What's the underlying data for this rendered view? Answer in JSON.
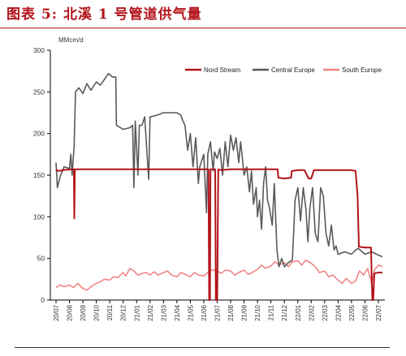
{
  "figure_title": "图表 5:  北溪 1 号管道供气量",
  "chart_data": {
    "type": "line",
    "ylabel": "MMcm/d",
    "ylim": [
      0,
      300
    ],
    "yticks": [
      "0",
      "50",
      "100",
      "150",
      "200",
      "250",
      "300"
    ],
    "xticks": [
      "20/07",
      "20/08",
      "20/09",
      "20/10",
      "20/11",
      "20/12",
      "21/01",
      "21/02",
      "21/03",
      "21/04",
      "21/05",
      "21/06",
      "21/07",
      "21/08",
      "21/09",
      "21/10",
      "21/11",
      "21/12",
      "22/01",
      "22/02",
      "22/03",
      "22/04",
      "22/05",
      "22/06",
      "22/07"
    ],
    "legend_position": "top-right",
    "series": [
      {
        "name": "Nord Stream",
        "color": "#b2131a",
        "points": [
          [
            0.0,
            157
          ],
          [
            0.15,
            155
          ],
          [
            0.5,
            156
          ],
          [
            1.2,
            157
          ],
          [
            1.33,
            157
          ],
          [
            1.36,
            98
          ],
          [
            1.4,
            157
          ],
          [
            2.0,
            157
          ],
          [
            3.0,
            157
          ],
          [
            4.0,
            157
          ],
          [
            5.0,
            157
          ],
          [
            6.0,
            157
          ],
          [
            7.0,
            157
          ],
          [
            8.0,
            157
          ],
          [
            9.0,
            157
          ],
          [
            10.0,
            157
          ],
          [
            11.0,
            157
          ],
          [
            11.35,
            157
          ],
          [
            11.4,
            0
          ],
          [
            11.46,
            0
          ],
          [
            11.5,
            157
          ],
          [
            11.85,
            157
          ],
          [
            11.9,
            0
          ],
          [
            12.0,
            0
          ],
          [
            12.08,
            157
          ],
          [
            12.3,
            156
          ],
          [
            13.0,
            157
          ],
          [
            14.0,
            157
          ],
          [
            15.0,
            157
          ],
          [
            16.0,
            157
          ],
          [
            16.5,
            157
          ],
          [
            16.55,
            147
          ],
          [
            17.0,
            146
          ],
          [
            17.5,
            147
          ],
          [
            17.55,
            155
          ],
          [
            18.0,
            156
          ],
          [
            18.5,
            156
          ],
          [
            18.8,
            146
          ],
          [
            19.0,
            146
          ],
          [
            19.2,
            156
          ],
          [
            20.0,
            156
          ],
          [
            21.0,
            156
          ],
          [
            22.0,
            156
          ],
          [
            22.3,
            155
          ],
          [
            22.45,
            125
          ],
          [
            22.55,
            64
          ],
          [
            23.0,
            63
          ],
          [
            23.45,
            63
          ],
          [
            23.5,
            30
          ],
          [
            23.55,
            0
          ],
          [
            23.62,
            0
          ],
          [
            23.7,
            32
          ],
          [
            24.0,
            33
          ],
          [
            24.3,
            33
          ]
        ]
      },
      {
        "name": "Central Europe",
        "color": "#595959",
        "points": [
          [
            0.0,
            165
          ],
          [
            0.1,
            135
          ],
          [
            0.3,
            148
          ],
          [
            0.6,
            160
          ],
          [
            1.0,
            158
          ],
          [
            1.1,
            175
          ],
          [
            1.2,
            150
          ],
          [
            1.35,
            185
          ],
          [
            1.45,
            250
          ],
          [
            1.7,
            255
          ],
          [
            2.0,
            248
          ],
          [
            2.3,
            260
          ],
          [
            2.6,
            252
          ],
          [
            3.0,
            262
          ],
          [
            3.3,
            258
          ],
          [
            3.6,
            265
          ],
          [
            3.9,
            272
          ],
          [
            4.2,
            268
          ],
          [
            4.45,
            268
          ],
          [
            4.5,
            210
          ],
          [
            5.0,
            205
          ],
          [
            5.5,
            207
          ],
          [
            5.7,
            210
          ],
          [
            5.8,
            135
          ],
          [
            5.9,
            215
          ],
          [
            6.1,
            150
          ],
          [
            6.2,
            210
          ],
          [
            6.4,
            210
          ],
          [
            6.6,
            220
          ],
          [
            6.9,
            145
          ],
          [
            7.0,
            220
          ],
          [
            7.5,
            222
          ],
          [
            8.0,
            225
          ],
          [
            8.5,
            225
          ],
          [
            9.0,
            225
          ],
          [
            9.3,
            222
          ],
          [
            9.45,
            215
          ],
          [
            9.6,
            210
          ],
          [
            9.8,
            180
          ],
          [
            10.0,
            200
          ],
          [
            10.2,
            160
          ],
          [
            10.4,
            195
          ],
          [
            10.6,
            140
          ],
          [
            10.7,
            160
          ],
          [
            11.0,
            175
          ],
          [
            11.2,
            105
          ],
          [
            11.3,
            175
          ],
          [
            11.5,
            190
          ],
          [
            11.7,
            155
          ],
          [
            11.8,
            178
          ],
          [
            12.0,
            170
          ],
          [
            12.2,
            182
          ],
          [
            12.4,
            150
          ],
          [
            12.6,
            190
          ],
          [
            12.8,
            160
          ],
          [
            13.0,
            198
          ],
          [
            13.2,
            180
          ],
          [
            13.4,
            195
          ],
          [
            13.6,
            165
          ],
          [
            13.75,
            190
          ],
          [
            14.0,
            150
          ],
          [
            14.2,
            160
          ],
          [
            14.4,
            130
          ],
          [
            14.55,
            155
          ],
          [
            14.7,
            115
          ],
          [
            14.9,
            135
          ],
          [
            15.0,
            100
          ],
          [
            15.15,
            120
          ],
          [
            15.3,
            85
          ],
          [
            15.45,
            140
          ],
          [
            15.6,
            160
          ],
          [
            15.75,
            120
          ],
          [
            15.9,
            110
          ],
          [
            16.1,
            90
          ],
          [
            16.25,
            140
          ],
          [
            16.45,
            60
          ],
          [
            16.6,
            40
          ],
          [
            16.8,
            50
          ],
          [
            17.0,
            40
          ],
          [
            17.3,
            45
          ],
          [
            17.6,
            48
          ],
          [
            17.8,
            120
          ],
          [
            18.0,
            135
          ],
          [
            18.2,
            95
          ],
          [
            18.4,
            135
          ],
          [
            18.6,
            110
          ],
          [
            18.75,
            70
          ],
          [
            18.9,
            110
          ],
          [
            19.1,
            135
          ],
          [
            19.3,
            80
          ],
          [
            19.5,
            70
          ],
          [
            19.7,
            135
          ],
          [
            19.9,
            125
          ],
          [
            20.1,
            80
          ],
          [
            20.3,
            65
          ],
          [
            20.5,
            90
          ],
          [
            20.7,
            60
          ],
          [
            20.85,
            65
          ],
          [
            21.0,
            55
          ],
          [
            21.5,
            58
          ],
          [
            22.0,
            55
          ],
          [
            22.3,
            60
          ],
          [
            22.5,
            62
          ],
          [
            23.0,
            55
          ],
          [
            23.5,
            58
          ],
          [
            24.0,
            54
          ],
          [
            24.3,
            52
          ]
        ]
      },
      {
        "name": "South Europe",
        "color": "#f08585",
        "points": [
          [
            0.0,
            15
          ],
          [
            0.3,
            18
          ],
          [
            0.6,
            16
          ],
          [
            1.0,
            18
          ],
          [
            1.3,
            15
          ],
          [
            1.6,
            20
          ],
          [
            2.0,
            14
          ],
          [
            2.3,
            12
          ],
          [
            2.6,
            16
          ],
          [
            3.0,
            20
          ],
          [
            3.3,
            22
          ],
          [
            3.6,
            25
          ],
          [
            4.0,
            24
          ],
          [
            4.3,
            28
          ],
          [
            4.6,
            27
          ],
          [
            5.0,
            33
          ],
          [
            5.2,
            29
          ],
          [
            5.5,
            38
          ],
          [
            5.8,
            35
          ],
          [
            6.1,
            30
          ],
          [
            6.4,
            32
          ],
          [
            6.7,
            33
          ],
          [
            7.0,
            30
          ],
          [
            7.3,
            34
          ],
          [
            7.6,
            30
          ],
          [
            8.0,
            33
          ],
          [
            8.3,
            35
          ],
          [
            8.6,
            30
          ],
          [
            9.0,
            28
          ],
          [
            9.3,
            33
          ],
          [
            9.6,
            31
          ],
          [
            10.0,
            28
          ],
          [
            10.3,
            33
          ],
          [
            10.6,
            30
          ],
          [
            11.0,
            29
          ],
          [
            11.3,
            33
          ],
          [
            11.6,
            36
          ],
          [
            12.0,
            35
          ],
          [
            12.3,
            32
          ],
          [
            12.6,
            36
          ],
          [
            13.0,
            35
          ],
          [
            13.3,
            30
          ],
          [
            13.6,
            33
          ],
          [
            14.0,
            36
          ],
          [
            14.3,
            31
          ],
          [
            14.6,
            33
          ],
          [
            15.0,
            37
          ],
          [
            15.3,
            42
          ],
          [
            15.6,
            38
          ],
          [
            16.0,
            41
          ],
          [
            16.3,
            46
          ],
          [
            16.6,
            42
          ],
          [
            17.0,
            45
          ],
          [
            17.3,
            40
          ],
          [
            17.6,
            46
          ],
          [
            18.0,
            47
          ],
          [
            18.3,
            42
          ],
          [
            18.6,
            48
          ],
          [
            19.0,
            44
          ],
          [
            19.3,
            40
          ],
          [
            19.6,
            33
          ],
          [
            20.0,
            35
          ],
          [
            20.3,
            28
          ],
          [
            20.6,
            30
          ],
          [
            21.0,
            24
          ],
          [
            21.3,
            20
          ],
          [
            21.6,
            26
          ],
          [
            22.0,
            20
          ],
          [
            22.3,
            23
          ],
          [
            22.6,
            35
          ],
          [
            22.9,
            30
          ],
          [
            23.2,
            38
          ],
          [
            23.5,
            20
          ],
          [
            23.7,
            36
          ],
          [
            24.0,
            42
          ],
          [
            24.3,
            40
          ]
        ]
      }
    ]
  }
}
